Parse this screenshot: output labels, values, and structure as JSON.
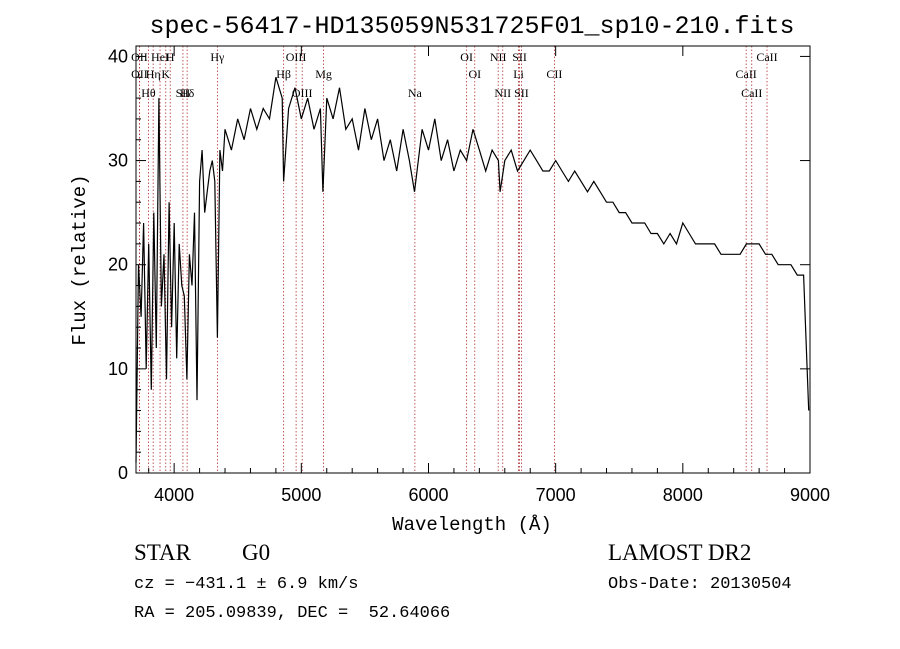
{
  "chart_data": {
    "type": "line",
    "title": "spec-56417-HD135059N531725F01_sp10-210.fits",
    "xlabel": "Wavelength (Å)",
    "ylabel": "Flux (relative)",
    "xlim": [
      3700,
      9000
    ],
    "ylim": [
      0,
      41
    ],
    "x_ticks": [
      4000,
      5000,
      6000,
      7000,
      8000,
      9000
    ],
    "y_ticks": [
      0,
      10,
      20,
      30,
      40
    ],
    "grid": false,
    "series": [
      {
        "color": "#000000",
        "x": [
          3700,
          3720,
          3740,
          3760,
          3780,
          3800,
          3820,
          3840,
          3860,
          3880,
          3900,
          3920,
          3940,
          3960,
          3980,
          4000,
          4020,
          4040,
          4060,
          4080,
          4100,
          4120,
          4140,
          4160,
          4180,
          4200,
          4220,
          4240,
          4260,
          4280,
          4300,
          4320,
          4340,
          4360,
          4380,
          4400,
          4450,
          4500,
          4550,
          4600,
          4650,
          4700,
          4750,
          4800,
          4850,
          4861,
          4900,
          4950,
          5000,
          5050,
          5100,
          5150,
          5170,
          5200,
          5250,
          5300,
          5350,
          5400,
          5450,
          5500,
          5550,
          5600,
          5650,
          5700,
          5750,
          5800,
          5850,
          5890,
          5950,
          6000,
          6050,
          6100,
          6150,
          6200,
          6250,
          6300,
          6350,
          6400,
          6450,
          6500,
          6550,
          6563,
          6600,
          6650,
          6700,
          6750,
          6800,
          6850,
          6900,
          6950,
          7000,
          7050,
          7100,
          7150,
          7200,
          7250,
          7300,
          7350,
          7400,
          7450,
          7500,
          7550,
          7600,
          7650,
          7700,
          7750,
          7800,
          7850,
          7900,
          7950,
          8000,
          8050,
          8100,
          8150,
          8200,
          8250,
          8300,
          8350,
          8400,
          8450,
          8500,
          8550,
          8600,
          8650,
          8700,
          8750,
          8800,
          8850,
          8900,
          8950,
          8990
        ],
        "y": [
          1,
          20,
          15,
          24,
          10,
          22,
          8,
          25,
          12,
          36,
          16,
          21,
          9,
          26,
          14,
          24,
          11,
          22,
          18,
          17,
          9,
          21,
          18,
          25,
          7,
          28,
          31,
          25,
          27,
          29,
          30,
          28,
          13,
          31,
          29,
          33,
          31,
          34,
          32,
          35,
          33,
          35,
          34,
          38,
          36,
          28,
          35,
          37,
          34,
          36,
          33,
          35,
          27,
          36,
          34,
          37,
          33,
          34,
          31,
          35,
          32,
          34,
          30,
          32,
          29,
          33,
          30,
          27,
          33,
          31,
          34,
          30,
          32,
          29,
          31,
          30,
          33,
          31,
          29,
          31,
          30,
          27,
          30,
          31,
          29,
          30,
          31,
          30,
          29,
          29,
          30,
          29,
          28,
          29,
          28,
          27,
          28,
          27,
          26,
          26,
          25,
          25,
          24,
          24,
          24,
          23,
          23,
          22,
          23,
          22,
          24,
          23,
          22,
          22,
          22,
          22,
          21,
          21,
          21,
          21,
          22,
          22,
          22,
          21,
          21,
          20,
          20,
          20,
          19,
          19,
          6
        ]
      }
    ],
    "line_labels": [
      {
        "text": "OII",
        "x": 3727
      },
      {
        "text": "OII",
        "x": 3727
      },
      {
        "text": "Hθ",
        "x": 3798
      },
      {
        "text": "HeI",
        "x": 3889
      },
      {
        "text": "Hη",
        "x": 3835
      },
      {
        "text": "SII",
        "x": 4069
      },
      {
        "text": "H",
        "x": 3969
      },
      {
        "text": "K",
        "x": 3934
      },
      {
        "text": "Hδ",
        "x": 4102
      },
      {
        "text": "Hγ",
        "x": 4340
      },
      {
        "text": "Hβ",
        "x": 4861
      },
      {
        "text": "OIII",
        "x": 5007
      },
      {
        "text": "OIII",
        "x": 4959
      },
      {
        "text": "Mg",
        "x": 5175
      },
      {
        "text": "Na",
        "x": 5893
      },
      {
        "text": "OI",
        "x": 6300
      },
      {
        "text": "OI",
        "x": 6364
      },
      {
        "text": "NII",
        "x": 6584
      },
      {
        "text": "NII",
        "x": 6548
      },
      {
        "text": "Li",
        "x": 6708
      },
      {
        "text": "SII",
        "x": 6731
      },
      {
        "text": "SII",
        "x": 6716
      },
      {
        "text": "CII",
        "x": 6990
      },
      {
        "text": "CaII",
        "x": 8542
      },
      {
        "text": "CaII",
        "x": 8662
      },
      {
        "text": "CaII",
        "x": 8498
      }
    ]
  },
  "footer": {
    "object": "STAR",
    "subclass": "G0",
    "survey": "LAMOST DR2",
    "cz": "cz = −431.1 ± 6.9 km/s",
    "obs_date": "Obs-Date: 20130504",
    "coords": "RA = 205.09839, DEC =  52.64066"
  }
}
